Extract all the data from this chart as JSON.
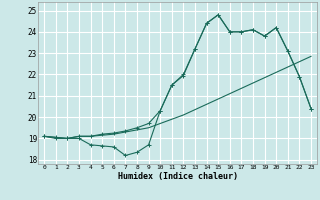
{
  "xlabel": "Humidex (Indice chaleur)",
  "bg_color": "#cce8e8",
  "grid_color": "#ffffff",
  "line_color": "#1a6b5a",
  "xlim": [
    -0.5,
    23.5
  ],
  "ylim": [
    17.8,
    25.4
  ],
  "yticks": [
    18,
    19,
    20,
    21,
    22,
    23,
    24,
    25
  ],
  "xticks": [
    0,
    1,
    2,
    3,
    4,
    5,
    6,
    7,
    8,
    9,
    10,
    11,
    12,
    13,
    14,
    15,
    16,
    17,
    18,
    19,
    20,
    21,
    22,
    23
  ],
  "series_bottom_x": [
    0,
    1,
    2,
    3,
    4,
    5,
    6,
    7,
    8,
    9,
    10,
    11,
    12,
    13,
    14,
    15,
    16,
    17,
    18,
    19,
    20,
    21,
    22,
    23
  ],
  "series_bottom_y": [
    19.1,
    19.0,
    19.0,
    19.0,
    18.7,
    18.65,
    18.6,
    18.2,
    18.35,
    18.7,
    20.3,
    21.5,
    21.95,
    23.2,
    24.4,
    24.8,
    24.0,
    24.0,
    24.1,
    23.8,
    24.2,
    23.1,
    21.9,
    20.4
  ],
  "series_diag_x": [
    0,
    1,
    2,
    3,
    4,
    5,
    6,
    7,
    8,
    9,
    10,
    11,
    12,
    13,
    14,
    15,
    16,
    17,
    18,
    19,
    20,
    21,
    22,
    23
  ],
  "series_diag_y": [
    19.1,
    19.05,
    19.0,
    19.1,
    19.1,
    19.15,
    19.2,
    19.3,
    19.4,
    19.5,
    19.7,
    19.9,
    20.1,
    20.35,
    20.6,
    20.85,
    21.1,
    21.35,
    21.6,
    21.85,
    22.1,
    22.35,
    22.6,
    22.85
  ],
  "series_top_x": [
    0,
    1,
    2,
    3,
    4,
    5,
    6,
    7,
    8,
    9,
    10,
    11,
    12,
    13,
    14,
    15,
    16,
    17,
    18,
    19,
    20,
    21,
    22,
    23
  ],
  "series_top_y": [
    19.1,
    19.05,
    19.0,
    19.1,
    19.1,
    19.2,
    19.25,
    19.35,
    19.5,
    19.7,
    20.3,
    21.5,
    22.0,
    23.2,
    24.4,
    24.8,
    24.0,
    24.0,
    24.1,
    23.8,
    24.2,
    23.1,
    21.9,
    20.4
  ]
}
